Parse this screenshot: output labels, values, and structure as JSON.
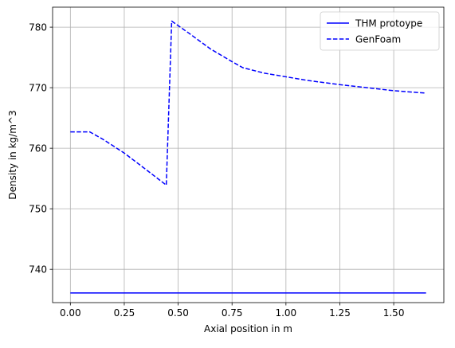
{
  "chart_data": {
    "type": "line",
    "title": "",
    "xlabel": "Axial position in m",
    "ylabel": "Density in kg/m^3",
    "xlim": [
      -0.0825,
      1.7325
    ],
    "ylim": [
      734.5,
      783.3
    ],
    "xticks": [
      0.0,
      0.25,
      0.5,
      0.75,
      1.0,
      1.25,
      1.5
    ],
    "xtick_labels": [
      "0.00",
      "0.25",
      "0.50",
      "0.75",
      "1.00",
      "1.25",
      "1.50"
    ],
    "yticks": [
      740,
      750,
      760,
      770,
      780
    ],
    "ytick_labels": [
      "740",
      "750",
      "760",
      "770",
      "780"
    ],
    "grid": true,
    "legend_position": "top-right",
    "series": [
      {
        "name": "THM protoype",
        "style": "solid",
        "color": "#0000ff",
        "x": [
          0.0,
          1.65
        ],
        "y": [
          736.1,
          736.1
        ]
      },
      {
        "name": "GenFoam",
        "style": "dashed",
        "color": "#0000ff",
        "x": [
          0.0,
          0.09,
          0.15,
          0.25,
          0.35,
          0.445,
          0.47,
          0.55,
          0.65,
          0.75,
          0.8,
          0.9,
          1.0,
          1.1,
          1.25,
          1.4,
          1.5,
          1.65
        ],
        "y": [
          762.7,
          762.7,
          761.5,
          759.2,
          756.5,
          753.9,
          781.0,
          779.0,
          776.4,
          774.3,
          773.3,
          772.4,
          771.8,
          771.2,
          770.5,
          769.9,
          769.5,
          769.1
        ]
      }
    ]
  }
}
